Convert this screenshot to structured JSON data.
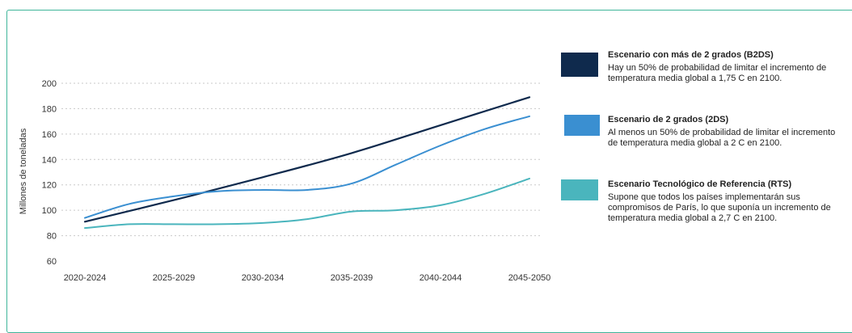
{
  "chart_data": {
    "type": "line",
    "title": "",
    "xlabel": "",
    "ylabel": "Millones de toneladas",
    "ylim": [
      60,
      200
    ],
    "yticks": [
      60,
      80,
      100,
      120,
      140,
      160,
      180,
      200
    ],
    "categories": [
      "2020-2024",
      "2025-2029",
      "2030-2034",
      "2035-2039",
      "2040-2044",
      "2045-2050"
    ],
    "grid": true,
    "legend_position": "right",
    "series": [
      {
        "name": "Escenario con más de 2 grados (B2DS)",
        "description": "Hay un 50% de probabilidad de limitar el incremento de temperatura media global a 1,75 C en 2100.",
        "color": "#0f2a4d",
        "x": [
          0,
          1,
          2,
          3,
          4,
          5
        ],
        "values": [
          91,
          108,
          126,
          145,
          167,
          189
        ]
      },
      {
        "name": "Escenario de 2 grados (2DS)",
        "description": "Al menos un 50% de probabilidad de limitar el incremento de temperatura media global a 2 C en 2100.",
        "color": "#3a8fd1",
        "x": [
          0,
          0.5,
          1,
          1.5,
          2,
          2.5,
          3,
          3.5,
          4,
          4.5,
          5
        ],
        "values": [
          94,
          105,
          111,
          115,
          116,
          116,
          121,
          136,
          151,
          164,
          174
        ]
      },
      {
        "name": "Escenario Tecnológico de Referencia (RTS)",
        "description": "Supone que todos los países implementarán sus compromisos de París, lo que suponía un incremento de temperatura media global a 2,7 C en 2100.",
        "color": "#4ab5bd",
        "x": [
          0,
          0.5,
          1,
          1.5,
          2,
          2.5,
          3,
          3.5,
          4,
          4.5,
          5
        ],
        "values": [
          86,
          89,
          89,
          89,
          90,
          93,
          99,
          100,
          104,
          113,
          125
        ]
      }
    ]
  }
}
